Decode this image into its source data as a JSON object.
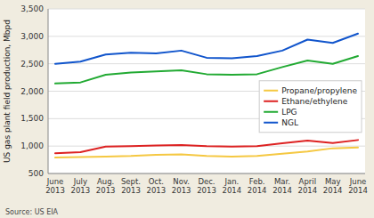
{
  "chart_data": {
    "type": "line",
    "categories": [
      "June\n2013",
      "July\n2013",
      "Aug.\n2013",
      "Sept.\n2013",
      "Oct.\n2013",
      "Nov.\n2013",
      "Dec.\n2013",
      "Jan.\n2014",
      "Feb.\n2014",
      "Mar.\n2014",
      "April\n2014",
      "May\n2014",
      "June\n2014"
    ],
    "series": [
      {
        "name": "Propane/propylene",
        "color": "#f5c842",
        "values": [
          790,
          800,
          810,
          820,
          840,
          850,
          820,
          810,
          820,
          860,
          900,
          960,
          975
        ]
      },
      {
        "name": "Ethane/ethylene",
        "color": "#dd2222",
        "values": [
          870,
          890,
          990,
          1000,
          1010,
          1020,
          1000,
          990,
          1000,
          1050,
          1100,
          1055,
          1110
        ]
      },
      {
        "name": "LPG",
        "color": "#22aa33",
        "values": [
          2140,
          2160,
          2300,
          2340,
          2360,
          2380,
          2310,
          2300,
          2310,
          2440,
          2560,
          2500,
          2640
        ]
      },
      {
        "name": "NGL",
        "color": "#1155cc",
        "values": [
          2500,
          2540,
          2670,
          2700,
          2690,
          2740,
          2610,
          2600,
          2640,
          2740,
          2940,
          2880,
          3050
        ]
      }
    ],
    "y_label": "US gas plant field production, Mbpd",
    "ylim": [
      500,
      3500
    ],
    "yticks": [
      500,
      {
        "value": 1000,
        "label": "1,000"
      },
      {
        "value": 1500,
        "label": "1,500"
      },
      {
        "value": 2000,
        "label": "2,000"
      },
      {
        "value": 2500,
        "label": "2,500"
      },
      {
        "value": 3000,
        "label": "3,000"
      },
      {
        "value": 3500,
        "label": "3,500"
      }
    ],
    "grid": true,
    "legend": "center right",
    "annotations": [
      "Source: US EIA"
    ]
  }
}
